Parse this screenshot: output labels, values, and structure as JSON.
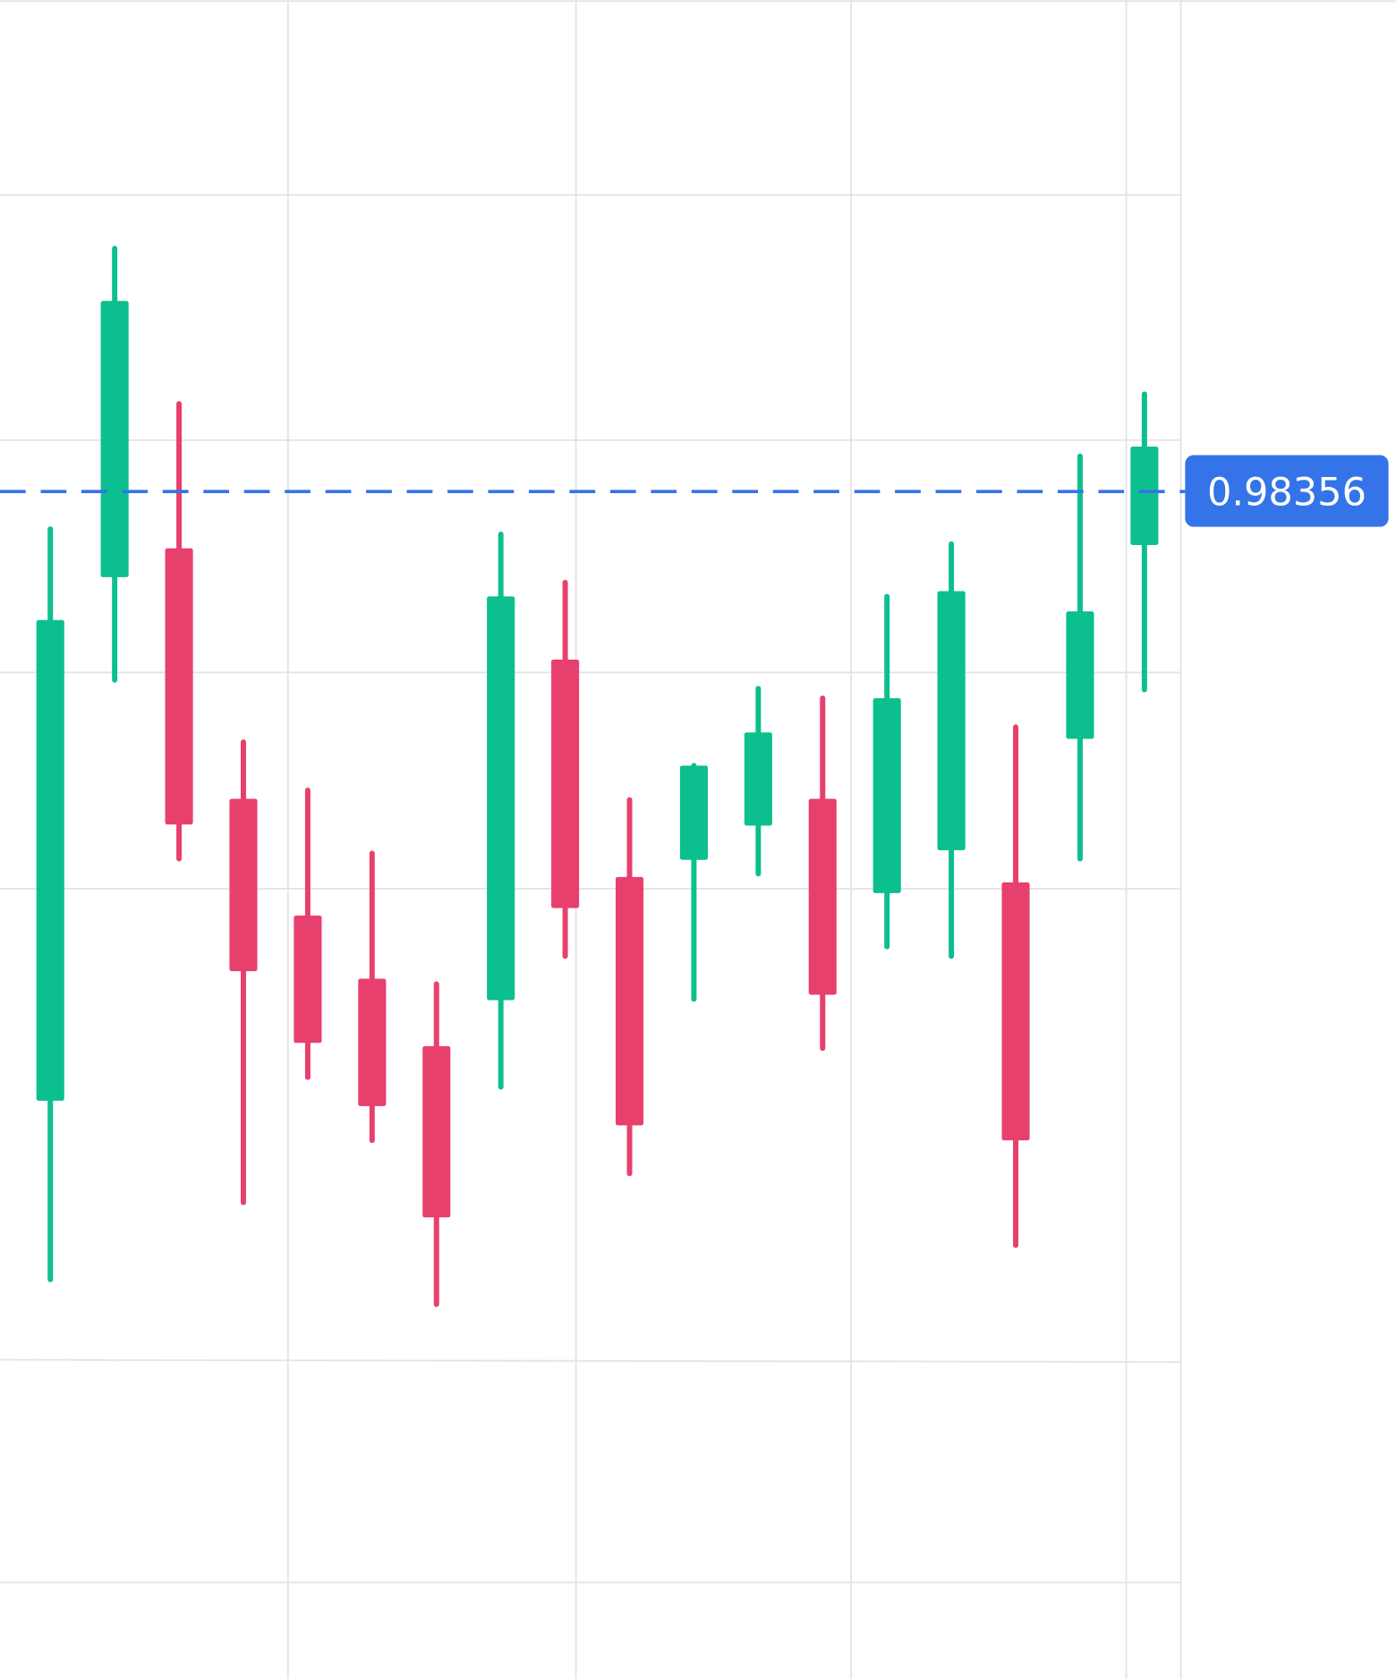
{
  "chart_data": {
    "type": "candlestick",
    "open": [
      0.97787,
      0.98276,
      0.98303,
      0.98069,
      0.9796,
      0.97901,
      0.97838,
      0.97881,
      0.98199,
      0.97996,
      0.98012,
      0.98044,
      0.98069,
      0.97981,
      0.98021,
      0.97991,
      0.98125,
      0.98306
    ],
    "high": [
      0.98321,
      0.98583,
      0.98438,
      0.98122,
      0.98077,
      0.98018,
      0.97896,
      0.98316,
      0.98271,
      0.98068,
      0.981,
      0.98172,
      0.98163,
      0.98258,
      0.98307,
      0.98136,
      0.98389,
      0.98447
    ],
    "low": [
      0.9762,
      0.9818,
      0.98013,
      0.97692,
      0.97809,
      0.9775,
      0.97597,
      0.978,
      0.97922,
      0.97719,
      0.97882,
      0.97999,
      0.97836,
      0.97931,
      0.97922,
      0.97652,
      0.98013,
      0.98171
    ],
    "close": [
      0.98236,
      0.98534,
      0.98045,
      0.97908,
      0.97841,
      0.97782,
      0.97678,
      0.98258,
      0.97967,
      0.97764,
      0.981,
      0.98131,
      0.97886,
      0.98163,
      0.98263,
      0.9775,
      0.98244,
      0.98398
    ],
    "up_color": "#0cbf8e",
    "down_color": "#e8406c",
    "last_price": 0.98356,
    "last_price_color": "#3474e8",
    "ylim": [
      0.97247,
      0.98815
    ]
  }
}
